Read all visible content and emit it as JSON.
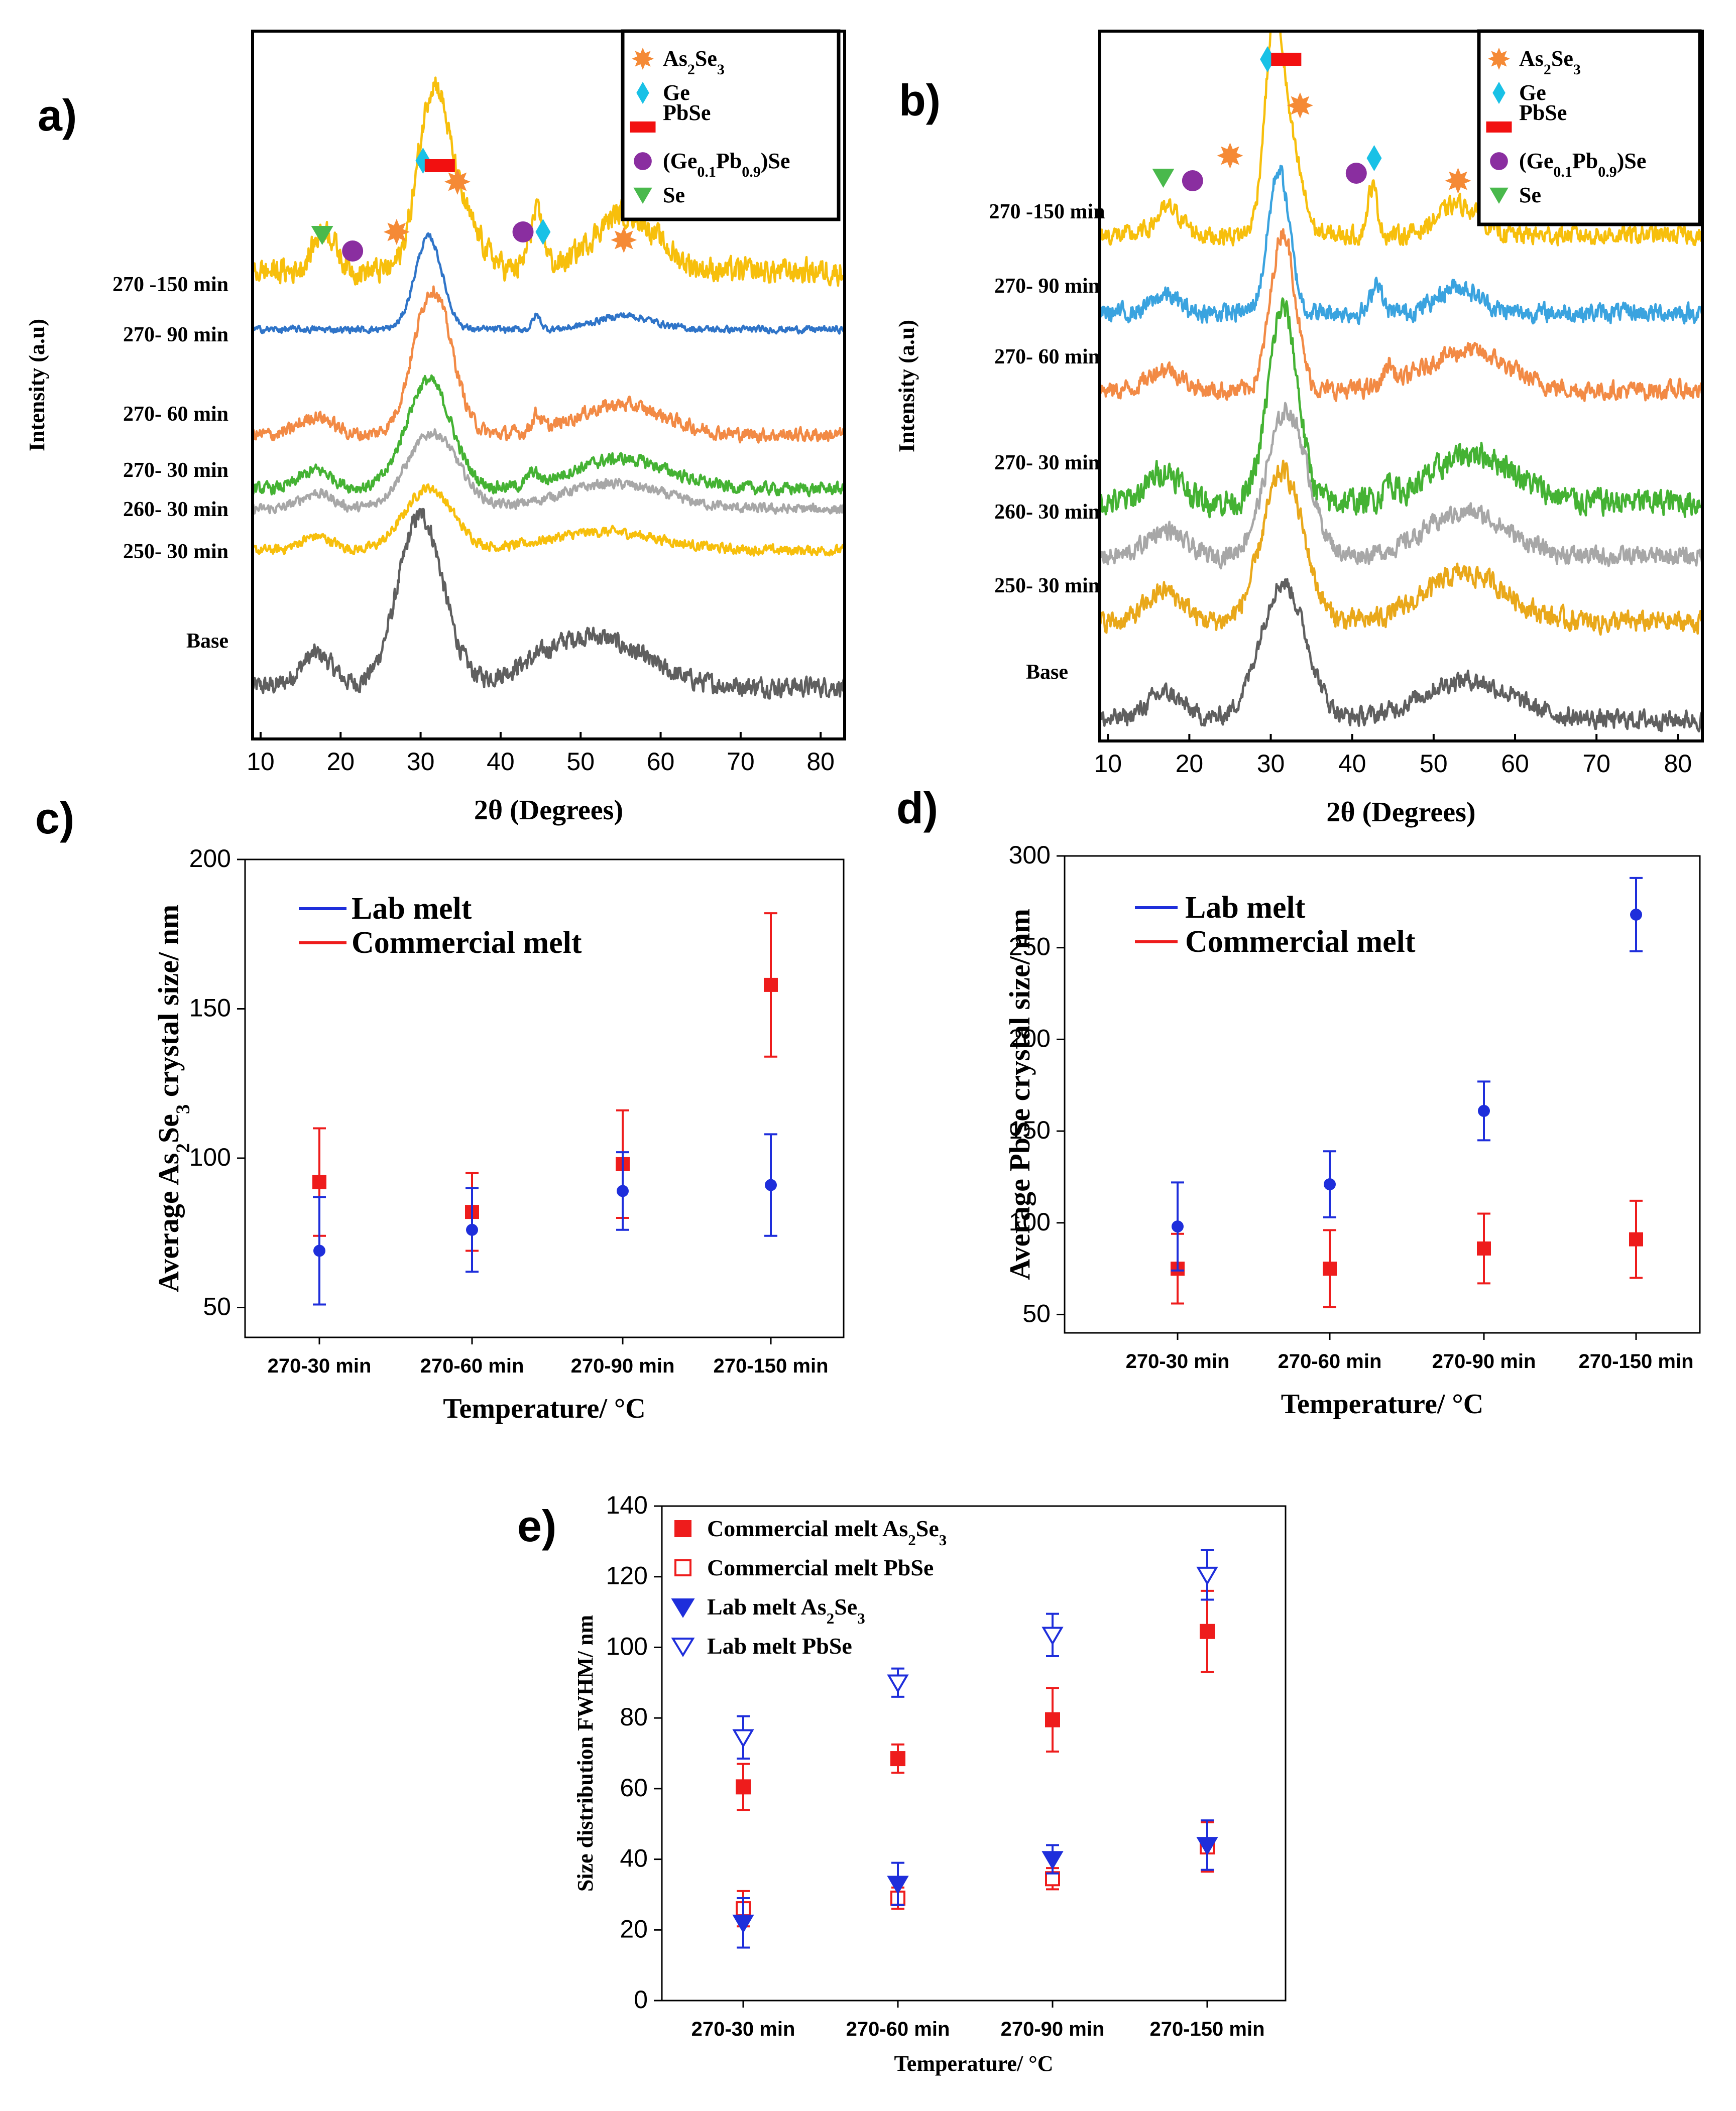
{
  "colors": {
    "base": "#5f5f5f",
    "yellow": "#f7bf0c",
    "blue": "#2f74c8",
    "orange": "#f28a45",
    "green": "#44b233",
    "gray": "#a7a7a7",
    "gold": "#e9a81a",
    "skyblue": "#3aa3df",
    "lab": "#1e2edb",
    "commercial": "#ee1c1c",
    "As2Se3": "#f58a36",
    "Ge": "#19c1e6",
    "PbSe": "#f21010",
    "GePbSe": "#8a2ea0",
    "Se": "#49b94c"
  },
  "panel_labels": {
    "a": "a)",
    "b": "b)",
    "c": "c)",
    "d": "d)",
    "e": "e)"
  },
  "xrd_legend": [
    {
      "marker": "star-icon",
      "color": "As2Se3",
      "pre": "As",
      "sub1": "2",
      "mid": "Se",
      "sub2": "3",
      "post": ""
    },
    {
      "marker": "diamond-icon",
      "color": "Ge",
      "pre": "Ge",
      "sub1": "",
      "mid": "",
      "sub2": "",
      "post": ""
    },
    {
      "marker": "bar-icon",
      "color": "PbSe",
      "pre": "PbSe",
      "sub1": "",
      "mid": "",
      "sub2": "",
      "post": ""
    },
    {
      "marker": "circle-icon",
      "color": "GePbSe",
      "pre": "(Ge",
      "sub1": "0.1",
      "mid": "Pb",
      "sub2": "0.9",
      "post": ")Se"
    },
    {
      "marker": "triangle-icon",
      "color": "Se",
      "pre": "Se",
      "sub1": "",
      "mid": "",
      "sub2": "",
      "post": ""
    }
  ],
  "chart_data": [
    {
      "panel": "a",
      "type": "line",
      "xlabel": "2θ (Degrees)",
      "ylabel": "Intensity (a.u)",
      "xlim": [
        9,
        83
      ],
      "xticks": [
        10,
        20,
        30,
        40,
        50,
        60,
        70,
        80
      ],
      "traces": [
        {
          "label": "Base",
          "color": "base",
          "peaks": [
            [
              17,
              0.14,
              2.0
            ],
            [
              30,
              0.74,
              2.8
            ],
            [
              51,
              0.22,
              6.5
            ]
          ],
          "baseline": [
            0.06,
            0.0
          ],
          "noise": 0.035
        },
        {
          "label": "250-  30 min",
          "color": "yellow",
          "peaks": [
            [
              17,
              0.06,
              2.0
            ],
            [
              31,
              0.27,
              3.0
            ],
            [
              53,
              0.08,
              7.0
            ]
          ],
          "baseline": [
            0.03,
            0.0
          ],
          "noise": 0.018
        },
        {
          "label": "260-  30 min",
          "color": "gray",
          "peaks": [
            [
              17,
              0.07,
              2.0
            ],
            [
              31.5,
              0.33,
              3.2
            ],
            [
              54,
              0.11,
              6.5
            ]
          ],
          "baseline": [
            0.03,
            0.0
          ],
          "noise": 0.018
        },
        {
          "label": "270-  30 min",
          "color": "green",
          "peaks": [
            [
              17,
              0.08,
              2.0
            ],
            [
              31,
              0.47,
              2.8
            ],
            [
              44,
              0.05,
              0.6
            ],
            [
              55,
              0.13,
              6.0
            ]
          ],
          "baseline": [
            0.04,
            0.0
          ],
          "noise": 0.022
        },
        {
          "label": "270-  60 min",
          "color": "orange",
          "peaks": [
            [
              17,
              0.08,
              2.0
            ],
            [
              31.5,
              0.63,
              2.4
            ],
            [
              44.5,
              0.07,
              0.6
            ],
            [
              55,
              0.13,
              5.5
            ]
          ],
          "baseline": [
            0.03,
            0.0
          ],
          "noise": 0.025
        },
        {
          "label": "270-  90 min",
          "color": "blue",
          "peaks": [
            [
              31,
              0.4,
              1.7
            ],
            [
              44.5,
              0.06,
              0.5
            ],
            [
              55.5,
              0.06,
              3.5
            ]
          ],
          "baseline": [
            0.03,
            0.0
          ],
          "noise": 0.012
        },
        {
          "label": "270 -150 min",
          "color": "yellow",
          "peaks": [
            [
              18,
              0.18,
              1.4
            ],
            [
              31.5,
              0.73,
              1.9
            ],
            [
              35,
              0.22,
              2.5
            ],
            [
              44.5,
              0.24,
              0.9
            ],
            [
              55.5,
              0.25,
              4.0
            ]
          ],
          "baseline": [
            0.13,
            0.0
          ],
          "noise": 0.045
        }
      ],
      "markers": [
        {
          "type": "triangle",
          "x": 17.7
        },
        {
          "type": "circle",
          "x": 21.5
        },
        {
          "type": "star",
          "x": 27
        },
        {
          "type": "diamond",
          "x": 30.3
        },
        {
          "type": "bar",
          "x": 32.4
        },
        {
          "type": "star",
          "x": 34.6
        },
        {
          "type": "circle",
          "x": 42.8
        },
        {
          "type": "diamond",
          "x": 45.3
        },
        {
          "type": "star",
          "x": 55.4
        }
      ]
    },
    {
      "panel": "b",
      "type": "line",
      "xlabel": "2θ (Degrees)",
      "ylabel": "Intensity (a.u)",
      "xlim": [
        9,
        83
      ],
      "xticks": [
        10,
        20,
        30,
        40,
        50,
        60,
        70,
        80
      ],
      "traces": [
        {
          "label": "Base",
          "color": "base",
          "peaks": [
            [
              17,
              0.12,
              2.2
            ],
            [
              31.5,
              0.62,
              2.8
            ],
            [
              54,
              0.18,
              5.5
            ]
          ],
          "baseline": [
            0.06,
            0.0
          ],
          "noise": 0.035
        },
        {
          "label": "250-  30 min",
          "color": "gold",
          "peaks": [
            [
              17,
              0.14,
              2.2
            ],
            [
              31.5,
              0.68,
              2.5
            ],
            [
              54,
              0.22,
              5.0
            ]
          ],
          "baseline": [
            0.07,
            0.0
          ],
          "noise": 0.04
        },
        {
          "label": "260-  30 min",
          "color": "gray",
          "peaks": [
            [
              17,
              0.12,
              2.2
            ],
            [
              32,
              0.66,
              2.5
            ],
            [
              54,
              0.2,
              5.0
            ]
          ],
          "baseline": [
            0.06,
            0.0
          ],
          "noise": 0.035
        },
        {
          "label": "270-  30 min",
          "color": "green",
          "peaks": [
            [
              17,
              0.14,
              2.0
            ],
            [
              31.5,
              0.88,
              1.8
            ],
            [
              44.5,
              0.08,
              0.6
            ],
            [
              55,
              0.22,
              5.0
            ]
          ],
          "baseline": [
            0.08,
            0.0
          ],
          "noise": 0.05
        },
        {
          "label": "270-  60 min",
          "color": "orange",
          "peaks": [
            [
              17,
              0.1,
              2.0
            ],
            [
              31.5,
              0.72,
              1.5
            ],
            [
              44.5,
              0.09,
              0.6
            ],
            [
              54,
              0.18,
              5.0
            ]
          ],
          "baseline": [
            0.05,
            0.0
          ],
          "noise": 0.035
        },
        {
          "label": "270-  90 min",
          "color": "skyblue",
          "peaks": [
            [
              17,
              0.08,
              1.6
            ],
            [
              31,
              0.65,
              1.3
            ],
            [
              43,
              0.15,
              0.6
            ],
            [
              53,
              0.12,
              2.5
            ]
          ],
          "baseline": [
            0.05,
            0.0
          ],
          "noise": 0.035
        },
        {
          "label": "270 -150 min",
          "color": "yellow",
          "peaks": [
            [
              17.5,
              0.12,
              1.6
            ],
            [
              30.5,
              0.98,
              1.2
            ],
            [
              33,
              0.28,
              1.2
            ],
            [
              42.5,
              0.22,
              0.6
            ],
            [
              53,
              0.14,
              2.5
            ]
          ],
          "baseline": [
            0.06,
            0.0
          ],
          "noise": 0.035
        }
      ],
      "markers": [
        {
          "type": "triangle",
          "x": 16.8
        },
        {
          "type": "circle",
          "x": 20.4
        },
        {
          "type": "star",
          "x": 25
        },
        {
          "type": "diamond",
          "x": 29.6
        },
        {
          "type": "bar",
          "x": 31.9
        },
        {
          "type": "star",
          "x": 33.6
        },
        {
          "type": "circle",
          "x": 40.5
        },
        {
          "type": "diamond",
          "x": 42.7
        },
        {
          "type": "star",
          "x": 53
        }
      ]
    },
    {
      "panel": "c",
      "type": "scatter",
      "xlabel": "Temperature/ °C",
      "ylabel_pre": "Average As",
      "ylabel_sub1": "2",
      "ylabel_mid": "Se",
      "ylabel_sub2": "3",
      "ylabel_post": " crystal size/ nm",
      "categories": [
        "270-30 min",
        "270-60 min",
        "270-90 min",
        "270-150 min"
      ],
      "ylim": [
        40,
        200
      ],
      "yticks": [
        50,
        100,
        150,
        200
      ],
      "legend": [
        "Lab melt",
        "Commercial melt"
      ],
      "series": [
        {
          "name": "Commercial melt",
          "color": "commercial",
          "marker": "square",
          "values": [
            92,
            82,
            98,
            158
          ],
          "err": [
            18,
            13,
            18,
            24
          ]
        },
        {
          "name": "Lab melt",
          "color": "lab",
          "marker": "circle",
          "values": [
            69,
            76,
            89,
            91
          ],
          "err": [
            18,
            14,
            13,
            17
          ]
        }
      ]
    },
    {
      "panel": "d",
      "type": "scatter",
      "xlabel": "Temperature/ °C",
      "ylabel": "Average PbSe crystal size/ nm",
      "categories": [
        "270-30 min",
        "270-60 min",
        "270-90 min",
        "270-150 min"
      ],
      "ylim": [
        40,
        300
      ],
      "yticks": [
        50,
        100,
        150,
        200,
        250,
        300
      ],
      "legend": [
        "Lab melt",
        "Commercial melt"
      ],
      "series": [
        {
          "name": "Commercial melt",
          "color": "commercial",
          "marker": "square",
          "values": [
            75,
            75,
            86,
            91
          ],
          "err": [
            19,
            21,
            19,
            21
          ]
        },
        {
          "name": "Lab melt",
          "color": "lab",
          "marker": "circle",
          "values": [
            98,
            121,
            161,
            268
          ],
          "err": [
            24,
            18,
            16,
            20
          ]
        }
      ]
    },
    {
      "panel": "e",
      "type": "scatter",
      "xlabel": "Temperature/ °C",
      "ylabel": "Size distribution FWHM/ nm",
      "categories": [
        "270-30 min",
        "270-60 min",
        "270-90 min",
        "270-150 min"
      ],
      "ylim": [
        0,
        140
      ],
      "yticks": [
        0,
        20,
        40,
        60,
        80,
        100,
        120,
        140
      ],
      "series": [
        {
          "name": "Commercial melt As2Se3",
          "color": "commercial",
          "marker": "square",
          "filled": true,
          "values": [
            60.5,
            68.5,
            79.5,
            104.5
          ],
          "err": [
            6.5,
            4,
            9,
            11.5
          ]
        },
        {
          "name": "Commercial melt PbSe",
          "color": "commercial",
          "marker": "square",
          "filled": false,
          "values": [
            26,
            29,
            34.5,
            43.5
          ],
          "err": [
            5,
            3,
            3,
            7
          ]
        },
        {
          "name": "Lab melt As2Se3",
          "color": "lab",
          "marker": "tri",
          "filled": true,
          "values": [
            22,
            33,
            40,
            44
          ],
          "err": [
            7,
            6,
            4,
            7
          ]
        },
        {
          "name": "Lab melt PbSe",
          "color": "lab",
          "marker": "tri",
          "filled": false,
          "values": [
            74.5,
            90,
            103.5,
            120.5
          ],
          "err": [
            6,
            4,
            6,
            7
          ]
        }
      ],
      "legend": [
        {
          "pre": "Commercial melt As",
          "sub1": "2",
          "mid": "Se",
          "sub2": "3"
        },
        {
          "pre": "Commercial melt PbSe",
          "sub1": "",
          "mid": "",
          "sub2": ""
        },
        {
          "pre": "Lab melt As",
          "sub1": "2",
          "mid": "Se",
          "sub2": "3"
        },
        {
          "pre": "Lab melt PbSe",
          "sub1": "",
          "mid": "",
          "sub2": ""
        }
      ]
    }
  ]
}
